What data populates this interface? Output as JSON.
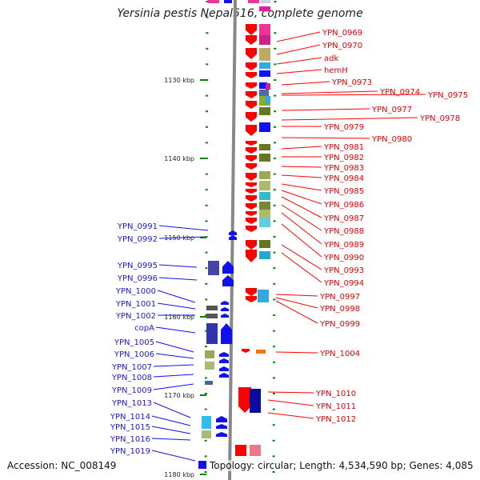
{
  "title": "Yersinia pestis Nepal516, complete genome",
  "footer": {
    "accession": "Accession: NC_008149",
    "summary": "Topology: circular; Length: 4,534,590 bp; Genes: 4,085"
  },
  "scale_labels": [
    "1130 kbp",
    "1140 kbp",
    "1150 kbp",
    "1160 kbp",
    "1170 kbp",
    "1180 kbp"
  ],
  "right_genes": [
    "YPN_0969",
    "YPN_0970",
    "adk",
    "hemH",
    "YPN_0973",
    "YPN_0974",
    "YPN_0975",
    "YPN_0977",
    "YPN_0978",
    "YPN_0979",
    "YPN_0980",
    "YPN_0981",
    "YPN_0982",
    "YPN_0983",
    "YPN_0984",
    "YPN_0985",
    "YPN_0986",
    "YPN_0987",
    "YPN_0988",
    "YPN_0989",
    "YPN_0990",
    "YPN_0993",
    "YPN_0994",
    "YPN_0997",
    "YPN_0998",
    "YPN_0999",
    "YPN_1004",
    "YPN_1010",
    "YPN_1011",
    "YPN_1012"
  ],
  "left_genes": [
    "YPN_0991",
    "YPN_0992",
    "YPN_0995",
    "YPN_0996",
    "YPN_1000",
    "YPN_1001",
    "YPN_1002",
    "copA",
    "YPN_1005",
    "YPN_1006",
    "YPN_1007",
    "YPN_1008",
    "YPN_1009",
    "YPN_1013",
    "YPN_1014",
    "YPN_1015",
    "YPN_1016",
    "YPN_1019"
  ],
  "colors": {
    "forward_strand": "#ff0000",
    "reverse_strand": "#1111ee",
    "backbone": "#888888",
    "tick": "#008800"
  }
}
